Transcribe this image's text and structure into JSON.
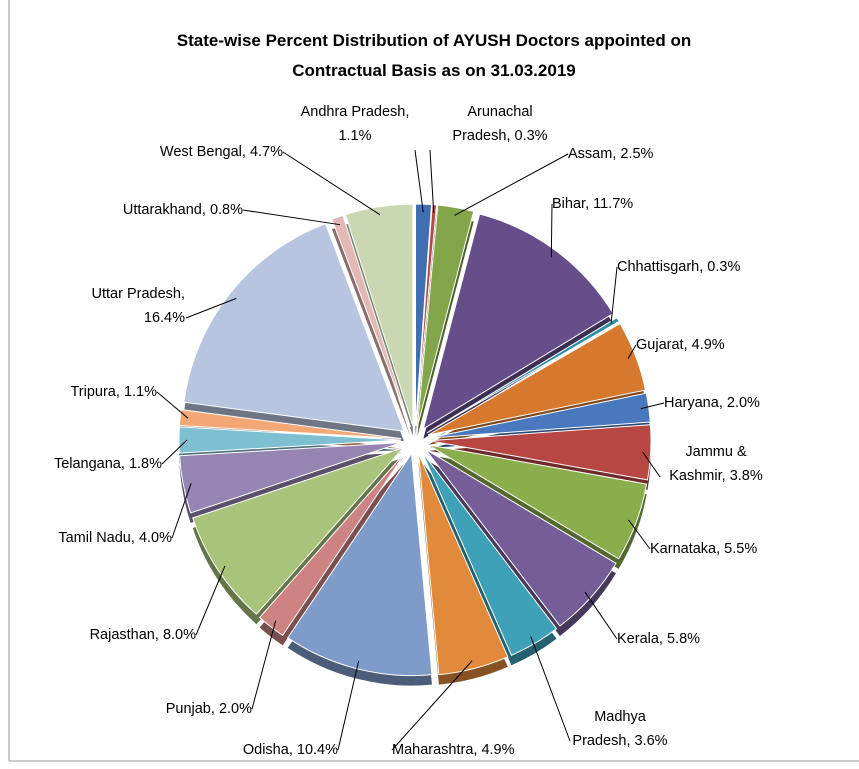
{
  "chart_data": {
    "type": "pie",
    "title": [
      "State-wise Percent Distribution of AYUSH Doctors appointed  on",
      "Contractual Basis  as on 31.03.2019"
    ],
    "categories": [
      "Andhra Pradesh",
      "Arunachal Pradesh",
      "Assam",
      "Bihar",
      "Chhattisgarh",
      "Gujarat",
      "Haryana",
      "Jammu & Kashmir",
      "Karnataka",
      "Kerala",
      "Madhya Pradesh",
      "Maharashtra",
      "Odisha",
      "Punjab",
      "Rajasthan",
      "Tamil Nadu",
      "Telangana",
      "Tripura",
      "Uttar Pradesh",
      "Uttarakhand",
      "West Bengal"
    ],
    "values": [
      1.1,
      0.3,
      2.5,
      11.7,
      0.3,
      4.9,
      2.0,
      3.8,
      5.5,
      5.8,
      3.6,
      4.9,
      10.4,
      2.0,
      8.0,
      4.0,
      1.8,
      1.1,
      16.4,
      0.8,
      4.7
    ],
    "value_labels": [
      "1.1%",
      "0.3%",
      "2.5%",
      "11.7%",
      "0.3%",
      "4.9%",
      "2.0%",
      "3.8%",
      "5.5%",
      "5.8%",
      "3.6%",
      "4.9%",
      "10.4%",
      "2.0%",
      "8.0%",
      "4.0%",
      "1.8%",
      "1.1%",
      "16.4%",
      "0.8%",
      "4.7%"
    ],
    "colors": [
      "#3f6fb0",
      "#b24a48",
      "#84a64a",
      "#654e8a",
      "#2f8ea6",
      "#d6782e",
      "#4a78be",
      "#b84643",
      "#8bae4d",
      "#755d97",
      "#3ea1b8",
      "#e18a3c",
      "#7f9bc9",
      "#cd8381",
      "#a7c47a",
      "#9685b2",
      "#7ebfd2",
      "#f2a774",
      "#b8c5e0",
      "#e2b7b6",
      "#cbd7b3"
    ]
  }
}
